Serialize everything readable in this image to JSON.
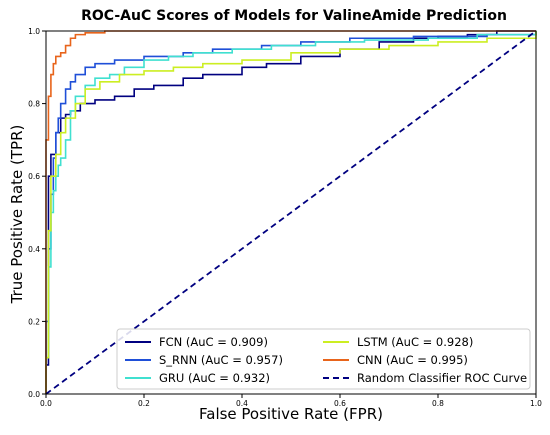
{
  "chart_data": {
    "type": "line",
    "title": "ROC-AuC Scores of Models for ValineAmide Prediction",
    "xlabel": "False Positive Rate (FPR)",
    "ylabel": "True Positive Rate (TPR)",
    "xlim": [
      0,
      1
    ],
    "ylim": [
      0,
      1
    ],
    "xticks": [
      "0.0",
      "0.2",
      "0.4",
      "0.6",
      "0.8",
      "1.0"
    ],
    "yticks": [
      "0.0",
      "0.2",
      "0.4",
      "0.6",
      "0.8",
      "1.0"
    ],
    "grid": false,
    "legend_position": "bottom-right",
    "series": [
      {
        "name": "FCN (AuC = 0.909)",
        "color": "#000080",
        "style": "solid",
        "x": [
          0,
          0,
          0.005,
          0.005,
          0.01,
          0.01,
          0.02,
          0.02,
          0.03,
          0.03,
          0.04,
          0.04,
          0.05,
          0.05,
          0.07,
          0.07,
          0.1,
          0.1,
          0.14,
          0.14,
          0.18,
          0.18,
          0.22,
          0.22,
          0.28,
          0.28,
          0.32,
          0.32,
          0.4,
          0.4,
          0.45,
          0.45,
          0.52,
          0.52,
          0.6,
          0.6,
          0.68,
          0.68,
          0.75,
          0.75,
          0.8,
          0.8,
          0.86,
          0.86,
          0.92,
          0.92,
          1.0,
          1.0
        ],
        "y": [
          0,
          0.08,
          0.08,
          0.6,
          0.6,
          0.66,
          0.66,
          0.72,
          0.72,
          0.76,
          0.76,
          0.77,
          0.77,
          0.78,
          0.78,
          0.8,
          0.8,
          0.81,
          0.81,
          0.82,
          0.82,
          0.84,
          0.84,
          0.85,
          0.85,
          0.87,
          0.87,
          0.88,
          0.88,
          0.9,
          0.9,
          0.91,
          0.91,
          0.93,
          0.93,
          0.95,
          0.95,
          0.97,
          0.97,
          0.98,
          0.98,
          0.985,
          0.985,
          0.99,
          0.99,
          1.0,
          1.0,
          1.0
        ]
      },
      {
        "name": "S_RNN (AuC = 0.957)",
        "color": "#1f4fd8",
        "style": "solid",
        "x": [
          0,
          0,
          0.005,
          0.005,
          0.01,
          0.01,
          0.015,
          0.015,
          0.02,
          0.02,
          0.025,
          0.025,
          0.03,
          0.03,
          0.04,
          0.04,
          0.05,
          0.05,
          0.06,
          0.06,
          0.08,
          0.08,
          0.1,
          0.1,
          0.14,
          0.14,
          0.2,
          0.2,
          0.28,
          0.28,
          0.34,
          0.34,
          0.44,
          0.44,
          0.52,
          0.52,
          0.62,
          0.62,
          0.75,
          0.75,
          0.9,
          0.9,
          1.0,
          1.0
        ],
        "y": [
          0,
          0.2,
          0.2,
          0.4,
          0.4,
          0.55,
          0.55,
          0.65,
          0.65,
          0.72,
          0.72,
          0.76,
          0.76,
          0.8,
          0.8,
          0.84,
          0.84,
          0.86,
          0.86,
          0.88,
          0.88,
          0.9,
          0.9,
          0.91,
          0.91,
          0.92,
          0.92,
          0.93,
          0.93,
          0.94,
          0.94,
          0.95,
          0.95,
          0.96,
          0.96,
          0.97,
          0.97,
          0.98,
          0.98,
          0.985,
          0.985,
          0.99,
          0.99,
          1.0
        ]
      },
      {
        "name": "GRU (AuC = 0.932)",
        "color": "#40e0d0",
        "style": "solid",
        "x": [
          0,
          0,
          0.005,
          0.005,
          0.01,
          0.01,
          0.015,
          0.015,
          0.02,
          0.02,
          0.025,
          0.025,
          0.03,
          0.03,
          0.04,
          0.04,
          0.05,
          0.05,
          0.06,
          0.06,
          0.08,
          0.08,
          0.1,
          0.1,
          0.13,
          0.13,
          0.16,
          0.16,
          0.2,
          0.2,
          0.25,
          0.25,
          0.3,
          0.3,
          0.38,
          0.38,
          0.46,
          0.46,
          0.55,
          0.55,
          0.65,
          0.65,
          0.78,
          0.78,
          0.88,
          0.88,
          1.0,
          1.0
        ],
        "y": [
          0,
          0.1,
          0.1,
          0.35,
          0.35,
          0.5,
          0.5,
          0.56,
          0.56,
          0.6,
          0.6,
          0.63,
          0.63,
          0.65,
          0.65,
          0.7,
          0.7,
          0.78,
          0.78,
          0.82,
          0.82,
          0.85,
          0.85,
          0.87,
          0.87,
          0.88,
          0.88,
          0.9,
          0.9,
          0.92,
          0.92,
          0.93,
          0.93,
          0.94,
          0.94,
          0.95,
          0.95,
          0.96,
          0.96,
          0.97,
          0.97,
          0.975,
          0.975,
          0.98,
          0.98,
          0.99,
          0.99,
          1.0
        ]
      },
      {
        "name": "LSTM (AuC = 0.928)",
        "color": "#ccee22",
        "style": "solid",
        "x": [
          0,
          0,
          0.005,
          0.005,
          0.01,
          0.01,
          0.02,
          0.02,
          0.03,
          0.03,
          0.04,
          0.04,
          0.06,
          0.06,
          0.08,
          0.08,
          0.11,
          0.11,
          0.15,
          0.15,
          0.2,
          0.2,
          0.26,
          0.26,
          0.32,
          0.32,
          0.4,
          0.4,
          0.5,
          0.5,
          0.6,
          0.6,
          0.7,
          0.7,
          0.8,
          0.8,
          0.9,
          0.9,
          1.0,
          1.0
        ],
        "y": [
          0,
          0.1,
          0.1,
          0.45,
          0.45,
          0.6,
          0.6,
          0.66,
          0.66,
          0.72,
          0.72,
          0.76,
          0.76,
          0.8,
          0.8,
          0.84,
          0.84,
          0.86,
          0.86,
          0.88,
          0.88,
          0.89,
          0.89,
          0.9,
          0.9,
          0.91,
          0.91,
          0.92,
          0.92,
          0.94,
          0.94,
          0.95,
          0.95,
          0.96,
          0.96,
          0.97,
          0.97,
          0.98,
          0.98,
          1.0
        ]
      },
      {
        "name": "CNN (AuC = 0.995)",
        "color": "#e8641b",
        "style": "solid",
        "x": [
          0,
          0,
          0.005,
          0.005,
          0.01,
          0.01,
          0.015,
          0.015,
          0.02,
          0.02,
          0.03,
          0.03,
          0.04,
          0.04,
          0.05,
          0.05,
          0.06,
          0.06,
          0.08,
          0.08,
          0.12,
          0.12,
          1.0
        ],
        "y": [
          0,
          0.7,
          0.7,
          0.82,
          0.82,
          0.88,
          0.88,
          0.91,
          0.91,
          0.93,
          0.93,
          0.94,
          0.94,
          0.96,
          0.96,
          0.98,
          0.98,
          0.99,
          0.99,
          0.995,
          0.995,
          1.0,
          1.0
        ]
      },
      {
        "name": "Random Classifier ROC Curve",
        "color": "#000080",
        "style": "dashed",
        "x": [
          0,
          1
        ],
        "y": [
          0,
          1
        ]
      }
    ]
  }
}
